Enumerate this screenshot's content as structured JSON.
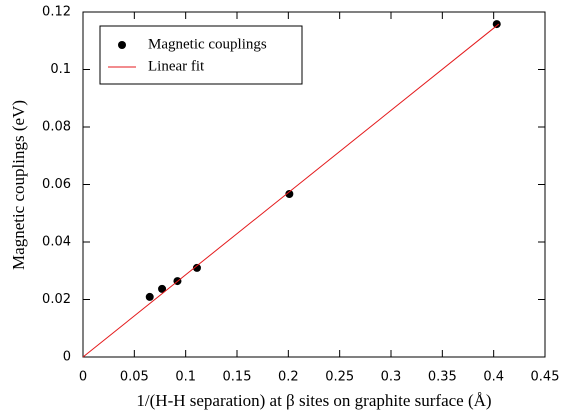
{
  "chart_data": {
    "type": "scatter",
    "x_label": "1/(H-H separation) at β sites on graphite surface (Å)",
    "y_label": "Magnetic couplings (eV)",
    "series": [
      {
        "name": "Magnetic couplings",
        "color": "#000000",
        "kind": "points",
        "x": [
          0.065,
          0.077,
          0.092,
          0.111,
          0.201,
          0.403
        ],
        "values": [
          0.0209,
          0.0237,
          0.0264,
          0.031,
          0.0567,
          0.1158
        ]
      },
      {
        "name": "Linear fit",
        "color": "#e41a1c",
        "kind": "line",
        "x": [
          0,
          0.405
        ],
        "values": [
          0,
          0.1158
        ]
      }
    ],
    "xlim": [
      0,
      0.45
    ],
    "ylim": [
      0,
      0.12
    ],
    "xticks": [
      0,
      0.05,
      0.1,
      0.15,
      0.2,
      0.25,
      0.3,
      0.35,
      0.4,
      0.45
    ],
    "yticks": [
      0,
      0.02,
      0.04,
      0.06,
      0.08,
      0.1,
      0.12
    ],
    "legend": "upper-left"
  }
}
